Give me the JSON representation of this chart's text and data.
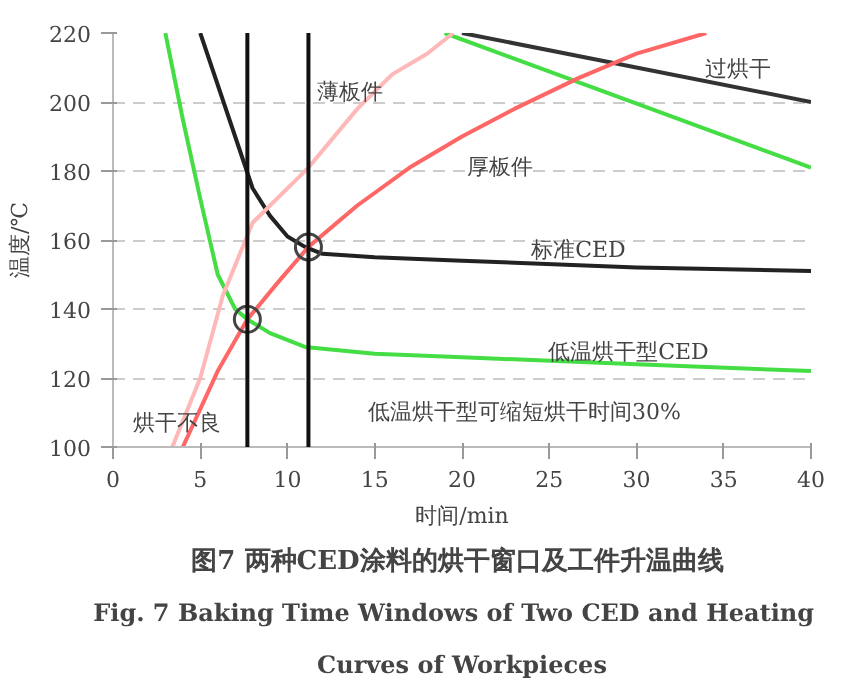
{
  "chart_data": {
    "type": "line",
    "title": "图7  两种CED涂料的烘干窗口及工件升温曲线",
    "subtitle": "Fig. 7   Baking Time Windows of Two CED and Heating\nCurves of Workpieces",
    "xlabel": "时间/min",
    "ylabel": "温度/℃",
    "xlim": [
      0,
      40
    ],
    "ylim": [
      100,
      220
    ],
    "xticks": [
      0,
      5,
      10,
      15,
      20,
      25,
      30,
      35,
      40
    ],
    "yticks": [
      100,
      120,
      140,
      160,
      180,
      200,
      220
    ],
    "grid": "y",
    "series": [
      {
        "color": "#222222",
        "x": [
          5,
          6,
          7,
          8,
          9,
          10,
          11,
          12,
          15,
          20,
          30,
          40
        ],
        "values": [
          220,
          205,
          190,
          175,
          167,
          161,
          158,
          156,
          155,
          154,
          152,
          151
        ]
      },
      {
        "color": "#44dd44",
        "x": [
          3,
          4,
          5,
          6,
          7,
          7.7,
          9,
          11,
          15,
          20,
          30,
          40
        ],
        "values": [
          220,
          195,
          172,
          150,
          140,
          137,
          133,
          129,
          127,
          126,
          124,
          122
        ]
      },
      {
        "color": "#333333",
        "x": [
          20,
          40
        ],
        "values": [
          220,
          200
        ]
      },
      {
        "color": "#44dd44",
        "x": [
          19,
          40
        ],
        "values": [
          220,
          181
        ]
      },
      {
        "color": "#ffb8b8",
        "x": [
          3.4,
          5,
          6.3,
          8,
          11.2,
          14,
          16,
          18,
          19.5
        ],
        "values": [
          100,
          120,
          144,
          165,
          181,
          198,
          208,
          214,
          220
        ]
      },
      {
        "color": "#ff6666",
        "x": [
          4,
          6,
          7.7,
          9.5,
          11.2,
          14,
          17,
          20,
          23,
          26.7,
          30,
          34
        ],
        "values": [
          100,
          122,
          137,
          148,
          158,
          170,
          181,
          190,
          198,
          207,
          214,
          220
        ]
      },
      {
        "type": "scatter",
        "marker": "circle",
        "color": "#444444",
        "x": [
          7.7,
          11.2
        ],
        "values": [
          137,
          158
        ]
      }
    ],
    "ref_lines": [
      {
        "axis": "x",
        "value": 7.7,
        "color": "#111111"
      },
      {
        "axis": "x",
        "value": 11.2,
        "color": "#111111"
      }
    ],
    "annotations": [
      "薄板件",
      "过烘干",
      "厚板件",
      "标准CED",
      "低温烘干型CED",
      "低温烘干型可缩短烘干时间30%",
      "烘干不良"
    ]
  }
}
